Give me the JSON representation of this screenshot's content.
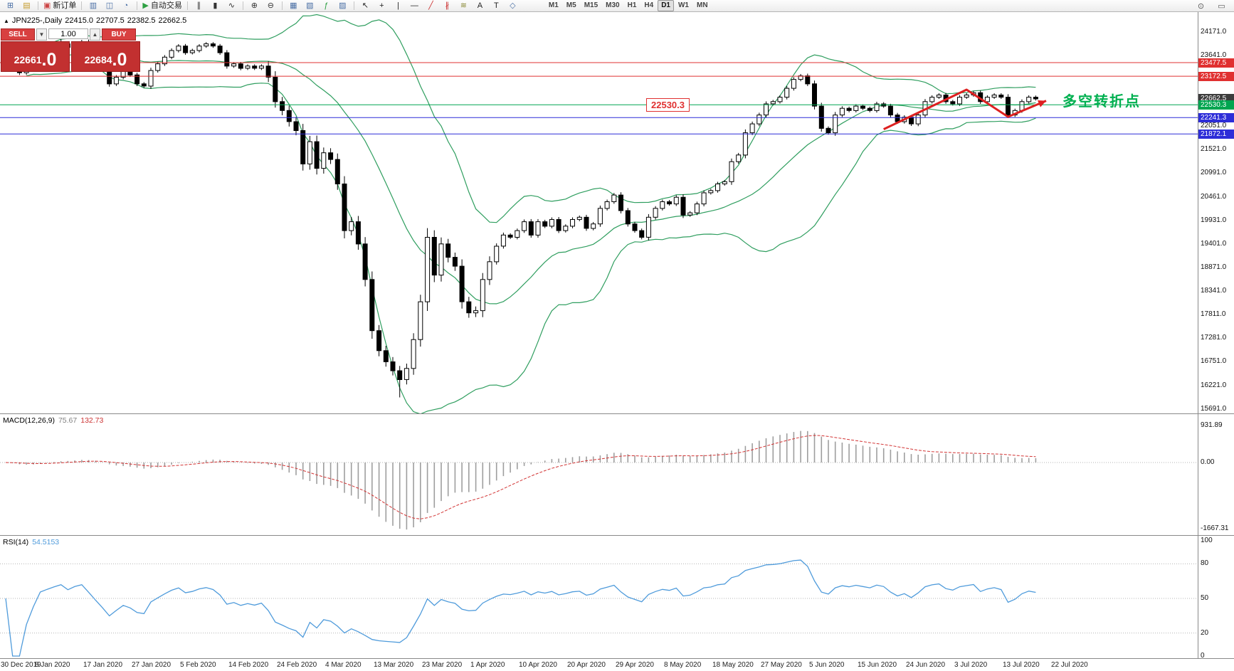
{
  "toolbar": {
    "groups": [
      [
        {
          "name": "new-chart-icon",
          "glyph": "⊞",
          "color": "#4a6fa5"
        },
        {
          "name": "profiles-icon",
          "glyph": "▤",
          "color": "#c49a2a"
        }
      ],
      [
        {
          "name": "new-order-button",
          "glyph": "▣",
          "color": "#cc4444",
          "label": "新订单"
        }
      ],
      [
        {
          "name": "market-watch-icon",
          "glyph": "▥",
          "color": "#4a6fa5"
        },
        {
          "name": "data-window-icon",
          "glyph": "◫",
          "color": "#4a6fa5"
        },
        {
          "name": "strategy-tester-icon",
          "glyph": "◔",
          "color": "#4a6fa5"
        }
      ],
      [
        {
          "name": "autotrading-button",
          "glyph": "▶",
          "color": "#2ea043",
          "label": "自动交易"
        }
      ],
      [
        {
          "name": "bars-chart-icon",
          "glyph": "∥",
          "color": "#333333"
        },
        {
          "name": "candles-chart-icon",
          "glyph": "▮",
          "color": "#333333"
        },
        {
          "name": "line-chart-icon",
          "glyph": "∿",
          "color": "#333333"
        }
      ],
      [
        {
          "name": "zoom-in-icon",
          "glyph": "⊕",
          "color": "#333333"
        },
        {
          "name": "zoom-out-icon",
          "glyph": "⊖",
          "color": "#333333"
        }
      ],
      [
        {
          "name": "tile-windows-icon",
          "glyph": "▦",
          "color": "#4a6fa5"
        },
        {
          "name": "auto-arrange-icon",
          "glyph": "▧",
          "color": "#4a6fa5"
        },
        {
          "name": "indicators-icon",
          "glyph": "ƒ",
          "color": "#2ea043"
        },
        {
          "name": "templates-icon",
          "glyph": "▨",
          "color": "#4a6fa5"
        }
      ],
      [
        {
          "name": "cursor-icon",
          "glyph": "↖",
          "color": "#222222"
        },
        {
          "name": "crosshair-icon",
          "glyph": "+",
          "color": "#222222"
        },
        {
          "name": "vertical-line-icon",
          "glyph": "|",
          "color": "#222222"
        },
        {
          "name": "horizontal-line-icon",
          "glyph": "—",
          "color": "#222222"
        },
        {
          "name": "trendline-icon",
          "glyph": "╱",
          "color": "#cc3333"
        },
        {
          "name": "channel-icon",
          "glyph": "∦",
          "color": "#cc3333"
        },
        {
          "name": "fibonacci-icon",
          "glyph": "≋",
          "color": "#888833"
        },
        {
          "name": "text-icon",
          "glyph": "A",
          "color": "#222222"
        },
        {
          "name": "label-icon",
          "glyph": "T",
          "color": "#222222"
        },
        {
          "name": "shapes-icon",
          "glyph": "◇",
          "color": "#4a6fa5"
        }
      ]
    ],
    "timeframes": [
      "M1",
      "M5",
      "M15",
      "M30",
      "H1",
      "H4",
      "D1",
      "W1",
      "MN"
    ],
    "active_timeframe": "D1",
    "right_icons": [
      {
        "name": "search-icon",
        "glyph": "⊙"
      },
      {
        "name": "community-icon",
        "glyph": "▭"
      }
    ]
  },
  "chart": {
    "symbol_title": "JPN225-,Daily",
    "ohlc": {
      "open": "22415.0",
      "high": "22707.5",
      "low": "22382.5",
      "close": "22662.5"
    },
    "trade_panel": {
      "sell_label": "SELL",
      "buy_label": "BUY",
      "volume": "1.00",
      "sell_main": "22661",
      "sell_frac": ".0",
      "buy_main": "22684",
      "buy_frac": ".0"
    },
    "price_tag": {
      "label": "22530.3"
    },
    "annotation": {
      "text": "多空转折点"
    },
    "levels": [
      {
        "price": 23477.5,
        "label": "23477.5",
        "color_key": "level_red"
      },
      {
        "price": 23172.5,
        "label": "23172.5",
        "color_key": "level_red"
      },
      {
        "price": 22530.3,
        "label": "22530.3",
        "color_key": "level_green"
      },
      {
        "price": 22241.3,
        "label": "22241.3",
        "color_key": "level_blue"
      },
      {
        "price": 21872.1,
        "label": "21872.1",
        "color_key": "level_blue"
      }
    ],
    "current_price": {
      "label": "22662.5",
      "price": 22662.5
    },
    "axis": {
      "ladder": [
        "24171.0",
        "23641.0",
        "22051.0",
        "21521.0",
        "20991.0",
        "20461.0",
        "19931.0",
        "19401.0",
        "18871.0",
        "18341.0",
        "17811.0",
        "17281.0",
        "16751.0",
        "16221.0",
        "15691.0"
      ],
      "ladder_values": [
        24171.0,
        23641.0,
        22051.0,
        21521.0,
        20991.0,
        20461.0,
        19931.0,
        19401.0,
        18871.0,
        18341.0,
        17811.0,
        17281.0,
        16751.0,
        16221.0,
        15691.0
      ]
    }
  },
  "indicators": {
    "macd": {
      "label": "MACD(12,26,9)",
      "value1": "75.67",
      "value2": "132.73",
      "axis": [
        "931.89",
        "0.00",
        "-1667.31"
      ]
    },
    "rsi": {
      "label": "RSI(14)",
      "value": "54.5153",
      "axis": [
        "100",
        "80",
        "50",
        "20",
        "0"
      ],
      "level_lines": [
        80,
        50,
        20
      ]
    }
  },
  "chart_data": {
    "type": "candlestick",
    "symbol": "JPN225-",
    "timeframe": "Daily",
    "first_open": 23600,
    "closes": [
      23650,
      23450,
      23250,
      23400,
      23550,
      23750,
      23800,
      23850,
      23900,
      23820,
      23900,
      23950,
      23800,
      23600,
      23350,
      23000,
      23150,
      23300,
      23200,
      23000,
      22950,
      23300,
      23450,
      23600,
      23750,
      23850,
      23700,
      23750,
      23850,
      23900,
      23850,
      23700,
      23400,
      23450,
      23350,
      23400,
      23350,
      23400,
      23150,
      22600,
      22400,
      22150,
      21950,
      21200,
      21700,
      21100,
      21450,
      21300,
      20750,
      19700,
      19900,
      19400,
      18600,
      17450,
      17000,
      16750,
      16550,
      16350,
      16600,
      17250,
      18100,
      19550,
      18700,
      19400,
      19100,
      18900,
      18100,
      17850,
      17900,
      18600,
      19000,
      19350,
      19600,
      19550,
      19700,
      19900,
      19600,
      19900,
      19800,
      19950,
      19700,
      19800,
      19950,
      20000,
      19750,
      19850,
      20200,
      20350,
      20500,
      20150,
      19850,
      19700,
      19550,
      20000,
      20200,
      20350,
      20300,
      20450,
      20050,
      20100,
      20300,
      20550,
      20600,
      20750,
      20800,
      21250,
      21400,
      21900,
      22100,
      22300,
      22550,
      22600,
      22700,
      22900,
      23100,
      23180,
      23000,
      22500,
      22000,
      21900,
      22300,
      22450,
      22400,
      22500,
      22450,
      22400,
      22550,
      22500,
      22300,
      22150,
      22250,
      22100,
      22300,
      22600,
      22700,
      22750,
      22600,
      22550,
      22700,
      22750,
      22800,
      22600,
      22700,
      22750,
      22700,
      22300,
      22400,
      22600,
      22700,
      22662
    ],
    "high_overrides": {
      "8": 24060
    },
    "low_overrides": {
      "57": 15950
    },
    "bollinger": {
      "period": 20,
      "deviation": 1.8
    },
    "macd_params": [
      12,
      26,
      9
    ],
    "rsi_period": 14,
    "zigzag_points": [
      [
        127,
        21980
      ],
      [
        139,
        22870
      ],
      [
        145,
        22260
      ],
      [
        150.5,
        22620
      ]
    ],
    "date_labels": [
      "30 Dec 2019",
      "8 Jan 2020",
      "17 Jan 2020",
      "27 Jan 2020",
      "5 Feb 2020",
      "14 Feb 2020",
      "24 Feb 2020",
      "4 Mar 2020",
      "13 Mar 2020",
      "23 Mar 2020",
      "1 Apr 2020",
      "10 Apr 2020",
      "20 Apr 2020",
      "29 Apr 2020",
      "8 May 2020",
      "18 May 2020",
      "27 May 2020",
      "5 Jun 2020",
      "15 Jun 2020",
      "24 Jun 2020",
      "3 Jul 2020",
      "13 Jul 2020",
      "22 Jul 2020"
    ]
  },
  "colors": {
    "band": "#2f9e5f",
    "candle_up_fill": "#ffffff",
    "candle_down_fill": "#000000",
    "candle_stroke": "#000000",
    "macd_hist": "#9e9e9e",
    "macd_signal": "#d23333",
    "rsi_line": "#4f9bdb",
    "level_red": "#e03030",
    "level_green": "#00a550",
    "level_blue": "#2d2dd8",
    "zigzag": "#dd2020",
    "annotation_green": "#00b050",
    "current_badge_bg": "#3c3c3c"
  }
}
